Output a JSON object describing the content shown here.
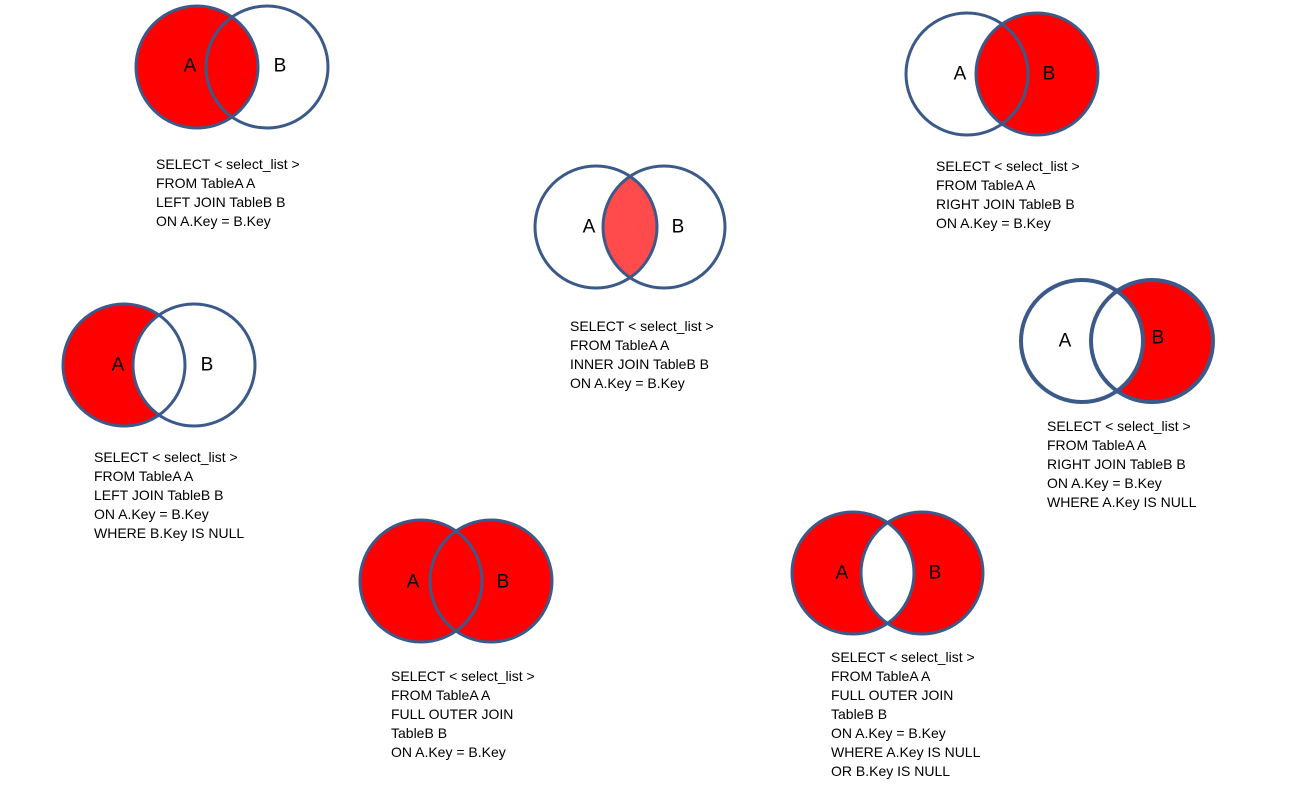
{
  "colors": {
    "fill": "#ff0000",
    "inner_fill": "#ff4b4b",
    "stroke": "#3b5a8a",
    "text": "#000000"
  },
  "diagrams": [
    {
      "id": "left-join",
      "label_a": "A",
      "label_b": "B",
      "shaded": "left",
      "sql": [
        "SELECT < select_list >",
        "FROM TableA A",
        "LEFT JOIN TableB B",
        "ON A.Key = B.Key"
      ]
    },
    {
      "id": "right-join",
      "label_a": "A",
      "label_b": "B",
      "shaded": "right",
      "sql": [
        "SELECT < select_list >",
        "FROM TableA A",
        "RIGHT JOIN TableB B",
        "ON A.Key = B.Key"
      ]
    },
    {
      "id": "inner-join",
      "label_a": "A",
      "label_b": "B",
      "shaded": "inner",
      "sql": [
        "SELECT < select_list >",
        "FROM TableA A",
        "INNER JOIN TableB B",
        "ON A.Key = B.Key"
      ]
    },
    {
      "id": "left-join-excluding",
      "label_a": "A",
      "label_b": "B",
      "shaded": "left-only",
      "sql": [
        "SELECT < select_list >",
        "FROM TableA A",
        "LEFT JOIN TableB B",
        "ON A.Key = B.Key",
        "WHERE B.Key IS NULL"
      ]
    },
    {
      "id": "right-join-excluding",
      "label_a": "A",
      "label_b": "B",
      "shaded": "right-only",
      "sql": [
        "SELECT < select_list >",
        "FROM TableA A",
        "RIGHT JOIN TableB B",
        "ON A.Key = B.Key",
        "WHERE A.Key IS NULL"
      ]
    },
    {
      "id": "full-outer-join",
      "label_a": "A",
      "label_b": "B",
      "shaded": "full",
      "sql": [
        "SELECT < select_list >",
        "FROM TableA A",
        "FULL OUTER JOIN",
        "TableB B",
        "ON A.Key = B.Key"
      ]
    },
    {
      "id": "full-outer-join-excluding",
      "label_a": "A",
      "label_b": "B",
      "shaded": "outer-only",
      "sql": [
        "SELECT < select_list >",
        "FROM TableA A",
        "FULL OUTER JOIN",
        "TableB B",
        "ON A.Key = B.Key",
        "WHERE A.Key IS NULL",
        "OR B.Key IS NULL"
      ]
    }
  ]
}
